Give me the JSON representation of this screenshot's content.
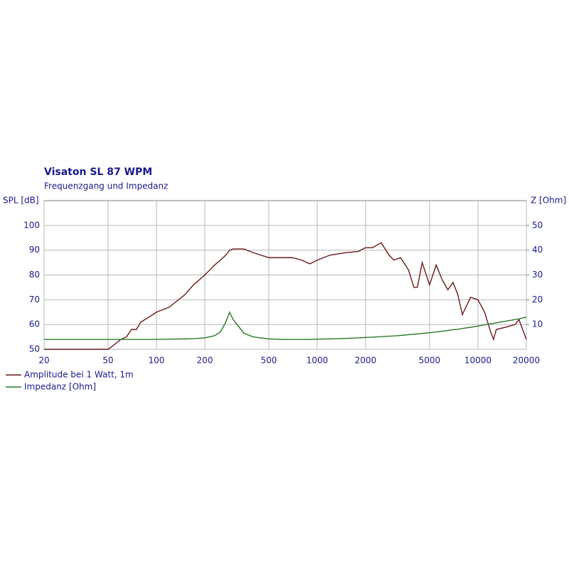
{
  "chart_data": {
    "type": "line",
    "title": "Visaton SL 87 WPM",
    "subtitle": "Frequenzgang und Impedanz",
    "y_label": "SPL [dB]",
    "y2_label": "Z [Ohm]",
    "x_log": true,
    "grid": true,
    "legend": "bottom-left",
    "x": [
      20,
      50,
      55,
      60,
      65,
      70,
      75,
      80,
      90,
      100,
      120,
      150,
      170,
      200,
      230,
      250,
      270,
      285,
      300,
      350,
      400,
      500,
      600,
      700,
      800,
      900,
      1000,
      1200,
      1500,
      1800,
      2000,
      2200,
      2500,
      2800,
      3000,
      3300,
      3700,
      4000,
      4200,
      4500,
      5000,
      5500,
      6000,
      6500,
      7000,
      7500,
      8000,
      9000,
      10000,
      11000,
      12000,
      12500,
      13000,
      15000,
      17000,
      18000,
      20000
    ],
    "series": [
      {
        "name": "Amplitude bei 1 Watt, 1m",
        "color": "#6b1a1a",
        "values": [
          50,
          50,
          52,
          54,
          55,
          58,
          58,
          61,
          63,
          65,
          67,
          72,
          76,
          80,
          84,
          86,
          88,
          90,
          90.5,
          90.5,
          89,
          87,
          87,
          87,
          86,
          84.5,
          86,
          88,
          89,
          89.5,
          91,
          91,
          93,
          88,
          86,
          87,
          82,
          75,
          75,
          85,
          76,
          84,
          78,
          74,
          77,
          72,
          64,
          71,
          70,
          65,
          57,
          54,
          58,
          59,
          60,
          62,
          54
        ]
      },
      {
        "name": "Impedanz [Ohm]",
        "color": "#2a7a2a",
        "axis": "y2",
        "values": [
          4,
          4,
          4,
          4,
          4,
          4,
          4,
          4,
          4,
          4,
          4.1,
          4.2,
          4.3,
          4.6,
          5.5,
          7,
          11,
          15,
          12,
          6.5,
          5,
          4.2,
          4,
          4,
          4,
          4,
          4.1,
          4.2,
          4.4,
          4.6,
          4.8,
          4.9,
          5.1,
          5.3,
          5.4,
          5.6,
          5.9,
          6.1,
          6.2,
          6.4,
          6.7,
          7,
          7.3,
          7.6,
          7.9,
          8.1,
          8.4,
          8.9,
          9.4,
          9.9,
          10.3,
          10.5,
          10.7,
          11.4,
          12,
          12.3,
          13
        ]
      }
    ],
    "xlim": [
      20,
      20000
    ],
    "xticks": [
      20,
      50,
      100,
      200,
      500,
      1000,
      2000,
      5000,
      10000,
      20000
    ],
    "ylim": [
      50,
      110
    ],
    "yticks": [
      50,
      60,
      70,
      80,
      90,
      100
    ],
    "y2lim": [
      0,
      60
    ],
    "y2ticks": [
      10,
      20,
      30,
      40,
      50
    ]
  }
}
